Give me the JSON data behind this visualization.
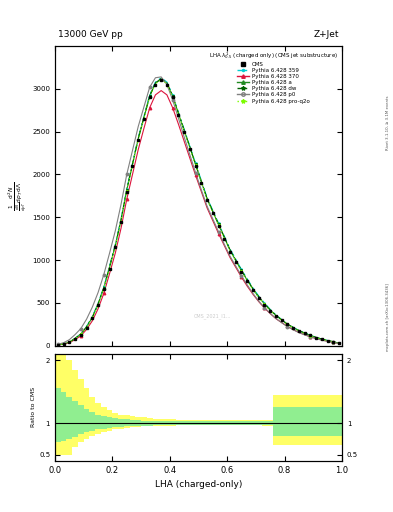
{
  "title_top": "13000 GeV pp",
  "title_right": "Z+Jet",
  "legend_title": "LHA $\\lambda^{1}_{0.5}$ (charged only) (CMS jet substructure)",
  "xlabel": "LHA (charged-only)",
  "ylabel_ratio": "Ratio to CMS",
  "watermark": "CMS_2021_I1...",
  "rivet_text": "Rivet 3.1.10, ≥ 3.1M events",
  "arxiv_text": "mcplots.cern.ch [arXiv:1306.3436]",
  "x_bins": [
    0.0,
    0.02,
    0.04,
    0.06,
    0.08,
    0.1,
    0.12,
    0.14,
    0.16,
    0.18,
    0.2,
    0.22,
    0.24,
    0.26,
    0.28,
    0.3,
    0.32,
    0.34,
    0.36,
    0.38,
    0.4,
    0.42,
    0.44,
    0.46,
    0.48,
    0.5,
    0.52,
    0.54,
    0.56,
    0.58,
    0.6,
    0.62,
    0.64,
    0.66,
    0.68,
    0.7,
    0.72,
    0.74,
    0.76,
    0.78,
    0.8,
    0.82,
    0.84,
    0.86,
    0.88,
    0.9,
    0.92,
    0.94,
    0.96,
    0.98,
    1.0
  ],
  "cms_y": [
    10,
    20,
    40,
    80,
    130,
    210,
    320,
    470,
    660,
    900,
    1150,
    1450,
    1800,
    2100,
    2400,
    2650,
    2900,
    3050,
    3100,
    3050,
    2900,
    2700,
    2500,
    2300,
    2100,
    1900,
    1700,
    1550,
    1400,
    1250,
    1100,
    980,
    860,
    750,
    650,
    560,
    480,
    410,
    350,
    300,
    250,
    210,
    175,
    145,
    120,
    95,
    75,
    60,
    45,
    30,
    0
  ],
  "py359_y": [
    10,
    22,
    44,
    85,
    140,
    225,
    340,
    495,
    685,
    930,
    1180,
    1480,
    1830,
    2130,
    2430,
    2680,
    2930,
    3080,
    3130,
    3080,
    2930,
    2730,
    2530,
    2330,
    2130,
    1930,
    1730,
    1580,
    1430,
    1280,
    1130,
    1010,
    890,
    780,
    675,
    580,
    500,
    425,
    360,
    305,
    255,
    215,
    178,
    148,
    122,
    97,
    77,
    61,
    46,
    31,
    0
  ],
  "py370_y": [
    8,
    17,
    35,
    70,
    115,
    190,
    290,
    430,
    610,
    840,
    1080,
    1370,
    1710,
    2000,
    2290,
    2540,
    2780,
    2930,
    2980,
    2930,
    2780,
    2590,
    2390,
    2190,
    1990,
    1800,
    1610,
    1460,
    1310,
    1170,
    1030,
    915,
    800,
    695,
    600,
    515,
    440,
    375,
    315,
    270,
    225,
    188,
    155,
    128,
    105,
    84,
    66,
    52,
    39,
    26,
    0
  ],
  "pya_y": [
    10,
    21,
    42,
    83,
    136,
    218,
    330,
    482,
    672,
    915,
    1165,
    1465,
    1815,
    2115,
    2415,
    2665,
    2915,
    3065,
    3115,
    3065,
    2915,
    2715,
    2515,
    2315,
    2115,
    1915,
    1715,
    1565,
    1415,
    1265,
    1115,
    995,
    875,
    765,
    660,
    568,
    488,
    416,
    354,
    300,
    252,
    212,
    176,
    146,
    120,
    96,
    76,
    60,
    45,
    30,
    0
  ],
  "pydw_y": [
    10,
    21,
    43,
    84,
    138,
    220,
    333,
    486,
    676,
    920,
    1170,
    1470,
    1820,
    2120,
    2420,
    2670,
    2920,
    3070,
    3120,
    3070,
    2920,
    2720,
    2520,
    2320,
    2120,
    1920,
    1720,
    1570,
    1420,
    1270,
    1120,
    1000,
    880,
    768,
    664,
    572,
    492,
    418,
    356,
    302,
    253,
    213,
    177,
    147,
    121,
    97,
    77,
    61,
    46,
    31,
    0
  ],
  "pyp0_y": [
    15,
    35,
    70,
    130,
    200,
    310,
    450,
    620,
    830,
    1080,
    1340,
    1650,
    2000,
    2280,
    2560,
    2790,
    3020,
    3130,
    3140,
    3050,
    2870,
    2660,
    2440,
    2230,
    2020,
    1820,
    1630,
    1480,
    1330,
    1185,
    1045,
    930,
    815,
    710,
    610,
    520,
    445,
    378,
    318,
    268,
    223,
    186,
    153,
    126,
    103,
    82,
    65,
    51,
    38,
    25,
    0
  ],
  "pyq2o_y": [
    9,
    20,
    41,
    81,
    133,
    214,
    326,
    478,
    667,
    909,
    1158,
    1458,
    1808,
    2108,
    2408,
    2658,
    2908,
    3058,
    3108,
    3058,
    2908,
    2708,
    2508,
    2308,
    2108,
    1908,
    1708,
    1558,
    1408,
    1258,
    1108,
    988,
    868,
    758,
    654,
    563,
    483,
    411,
    350,
    296,
    248,
    208,
    172,
    143,
    118,
    94,
    75,
    59,
    44,
    29,
    0
  ],
  "ratio_yellow_lo": [
    0.5,
    0.5,
    0.5,
    0.62,
    0.7,
    0.75,
    0.8,
    0.83,
    0.86,
    0.88,
    0.9,
    0.91,
    0.92,
    0.93,
    0.94,
    0.95,
    0.95,
    0.96,
    0.96,
    0.96,
    0.96,
    0.97,
    0.97,
    0.97,
    0.97,
    0.97,
    0.97,
    0.97,
    0.97,
    0.97,
    0.97,
    0.97,
    0.97,
    0.97,
    0.97,
    0.97,
    0.96,
    0.96,
    0.65,
    0.65,
    0.65,
    0.65,
    0.65,
    0.65,
    0.65,
    0.65,
    0.65,
    0.65,
    0.65,
    0.65,
    0.65
  ],
  "ratio_yellow_hi": [
    2.1,
    2.1,
    2.0,
    1.85,
    1.7,
    1.55,
    1.42,
    1.32,
    1.25,
    1.2,
    1.16,
    1.13,
    1.12,
    1.11,
    1.1,
    1.09,
    1.08,
    1.07,
    1.06,
    1.06,
    1.06,
    1.05,
    1.05,
    1.05,
    1.05,
    1.05,
    1.05,
    1.05,
    1.05,
    1.05,
    1.05,
    1.05,
    1.05,
    1.05,
    1.05,
    1.05,
    1.05,
    1.05,
    1.45,
    1.45,
    1.45,
    1.45,
    1.45,
    1.45,
    1.45,
    1.45,
    1.45,
    1.45,
    1.45,
    1.45,
    1.45
  ],
  "ratio_green_lo": [
    0.7,
    0.72,
    0.75,
    0.78,
    0.82,
    0.85,
    0.88,
    0.9,
    0.91,
    0.92,
    0.93,
    0.94,
    0.95,
    0.95,
    0.96,
    0.96,
    0.96,
    0.97,
    0.97,
    0.97,
    0.97,
    0.97,
    0.97,
    0.97,
    0.97,
    0.97,
    0.97,
    0.97,
    0.97,
    0.97,
    0.97,
    0.97,
    0.97,
    0.97,
    0.97,
    0.97,
    0.97,
    0.97,
    0.8,
    0.8,
    0.8,
    0.8,
    0.8,
    0.8,
    0.8,
    0.8,
    0.8,
    0.8,
    0.8,
    0.8,
    0.8
  ],
  "ratio_green_hi": [
    1.55,
    1.5,
    1.42,
    1.35,
    1.28,
    1.22,
    1.17,
    1.13,
    1.11,
    1.09,
    1.08,
    1.07,
    1.06,
    1.05,
    1.05,
    1.04,
    1.04,
    1.03,
    1.03,
    1.03,
    1.03,
    1.03,
    1.03,
    1.03,
    1.03,
    1.03,
    1.03,
    1.03,
    1.03,
    1.03,
    1.03,
    1.03,
    1.03,
    1.03,
    1.03,
    1.03,
    1.03,
    1.03,
    1.25,
    1.25,
    1.25,
    1.25,
    1.25,
    1.25,
    1.25,
    1.25,
    1.25,
    1.25,
    1.25,
    1.25,
    1.25
  ],
  "ylim_main": [
    0,
    3500
  ],
  "ylim_ratio": [
    0.4,
    2.1
  ],
  "yticks_main": [
    0,
    500,
    1000,
    1500,
    2000,
    2500,
    3000
  ],
  "colors": {
    "cms": "#000000",
    "py359": "#00ced1",
    "py370": "#dc143c",
    "pya": "#228b22",
    "pydw": "#006400",
    "pyp0": "#808080",
    "pyq2o": "#7cfc00",
    "green_band": "#90ee90",
    "yellow_band": "#ffff66"
  }
}
